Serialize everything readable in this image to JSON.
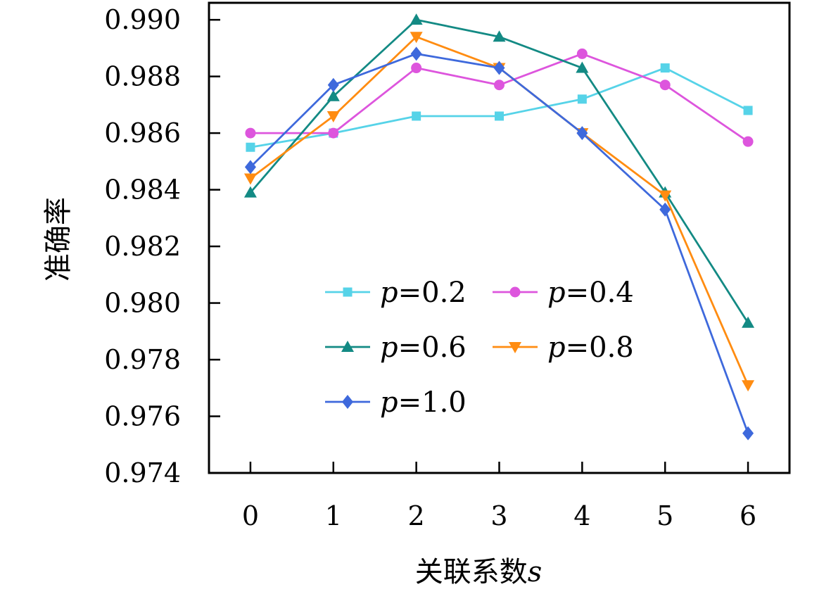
{
  "chart_data": {
    "type": "line",
    "title": "",
    "xlabel": "关联系数",
    "xlabel_var": "s",
    "ylabel": "准确率",
    "x": [
      0,
      1,
      2,
      3,
      4,
      5,
      6
    ],
    "xticks": [
      "0",
      "1",
      "2",
      "3",
      "4",
      "5",
      "6"
    ],
    "xlim": [
      -0.5,
      6.5
    ],
    "yticks": [
      "0.974",
      "0.976",
      "0.978",
      "0.980",
      "0.982",
      "0.984",
      "0.986",
      "0.988",
      "0.990"
    ],
    "ylim": [
      0.974,
      0.9906
    ],
    "grid": false,
    "legend": "center-bottom",
    "legend_var": "p",
    "series": [
      {
        "name": "=0.2",
        "color": "#56d3e8",
        "marker": "square",
        "values": [
          0.9855,
          0.986,
          0.9866,
          0.9866,
          0.9872,
          0.9883,
          0.9868
        ]
      },
      {
        "name": "=0.4",
        "color": "#dd55dd",
        "marker": "circle",
        "values": [
          0.986,
          0.986,
          0.9883,
          0.9877,
          0.9888,
          0.9877,
          0.9857
        ]
      },
      {
        "name": "=0.6",
        "color": "#138a84",
        "marker": "triangle-up",
        "values": [
          0.9839,
          0.9873,
          0.99,
          0.9894,
          0.9883,
          0.9839,
          0.9793
        ]
      },
      {
        "name": "=0.8",
        "color": "#ff8c11",
        "marker": "triangle-down",
        "values": [
          0.9844,
          0.9866,
          0.9894,
          0.9883,
          0.986,
          0.9838,
          0.9771
        ]
      },
      {
        "name": "=1.0",
        "color": "#3e69dc",
        "marker": "diamond",
        "values": [
          0.9848,
          0.9877,
          0.9888,
          0.9883,
          0.986,
          0.9833,
          0.9754
        ]
      }
    ]
  }
}
